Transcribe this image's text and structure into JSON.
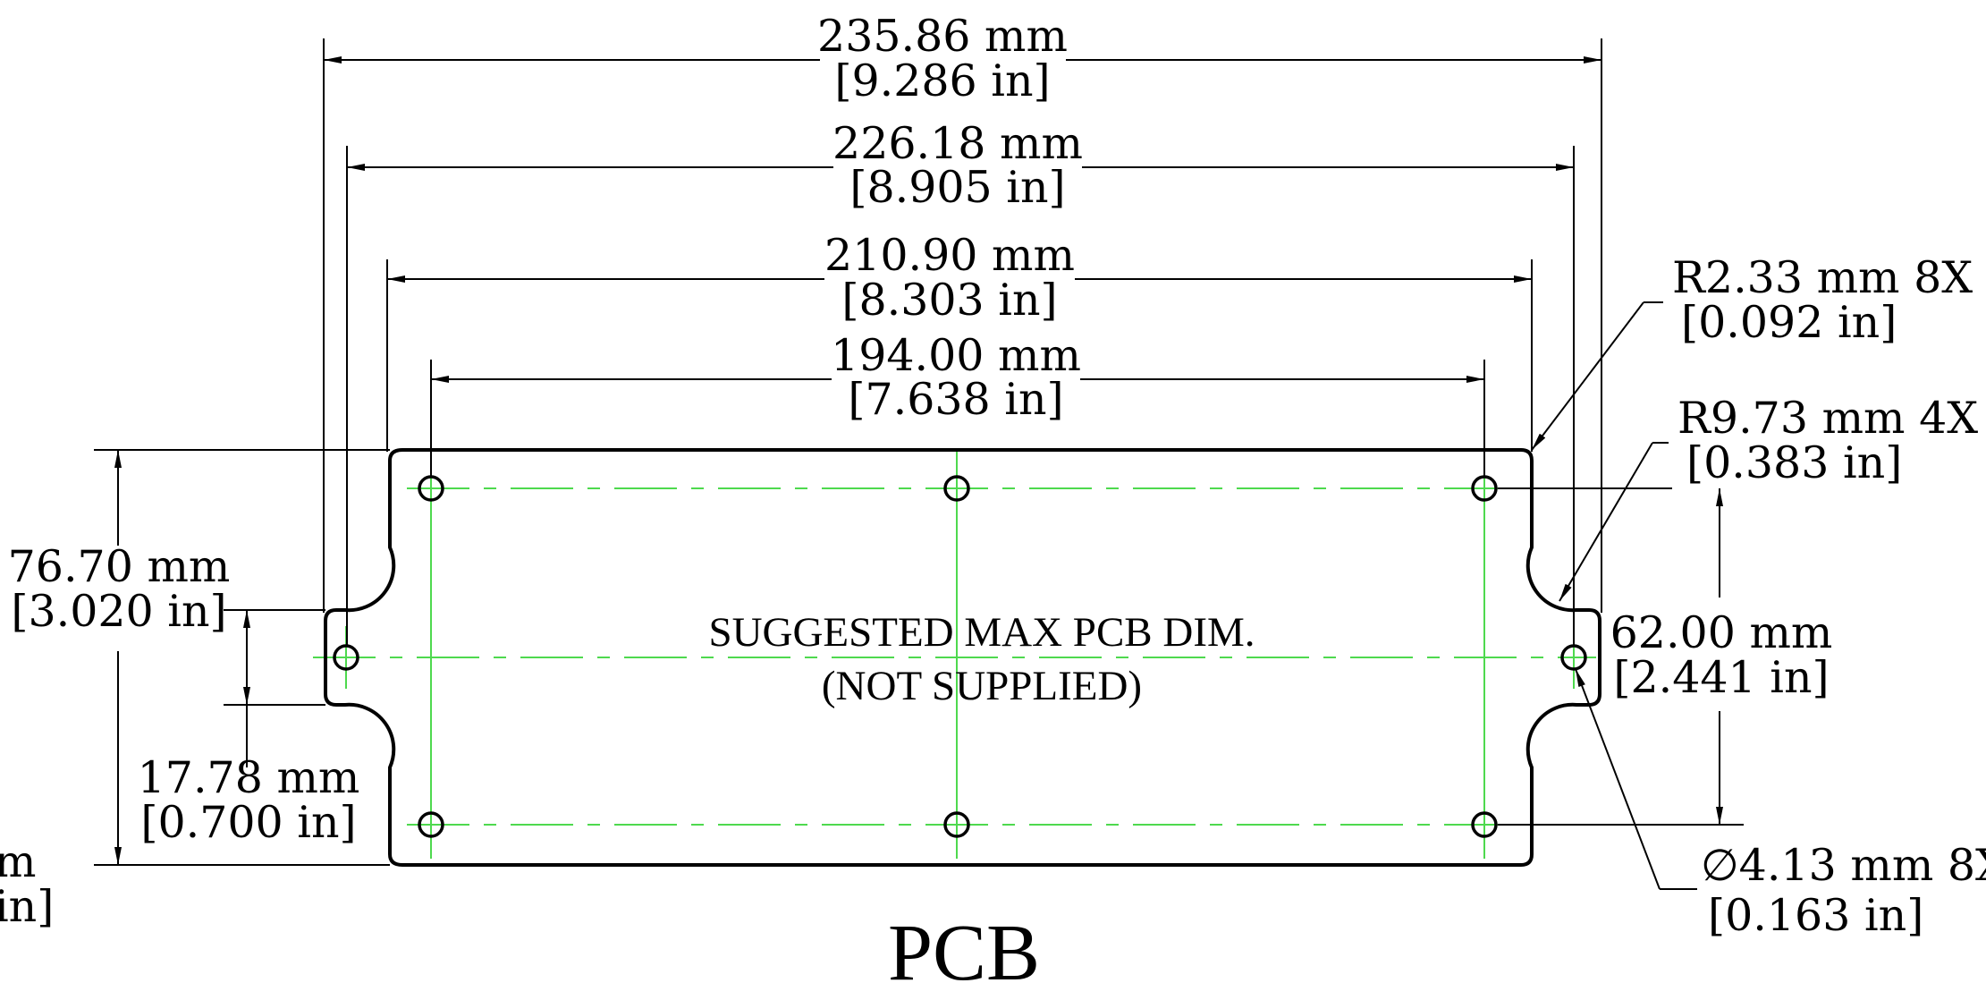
{
  "dimensions": {
    "d1": {
      "mm": "235.86 mm",
      "in": "[9.286 in]"
    },
    "d2": {
      "mm": "226.18 mm",
      "in": "[8.905 in]"
    },
    "d3": {
      "mm": "210.90 mm",
      "in": "[8.303 in]"
    },
    "d4": {
      "mm": "194.00 mm",
      "in": "[7.638 in]"
    },
    "height": {
      "mm": "76.70 mm",
      "in": "[3.020 in]"
    },
    "tab": {
      "mm": "17.78 mm",
      "in": "[0.700 in]"
    },
    "hole_spacing": {
      "mm": "62.00 mm",
      "in": "[2.441 in]"
    },
    "corner_radius": {
      "mm": "R2.33 mm 8X",
      "in": "[0.092 in]"
    },
    "notch_radius": {
      "mm": "R9.73 mm 4X",
      "in": "[0.383 in]"
    },
    "hole_dia": {
      "mm": "∅4.13 mm 8X",
      "in": "[0.163 in]"
    },
    "cut_left": {
      "mm": "m",
      "in": "in]"
    }
  },
  "note": {
    "line1": "SUGGESTED MAX PCB DIM.",
    "line2": "(NOT SUPPLIED)"
  },
  "title": "PCB"
}
